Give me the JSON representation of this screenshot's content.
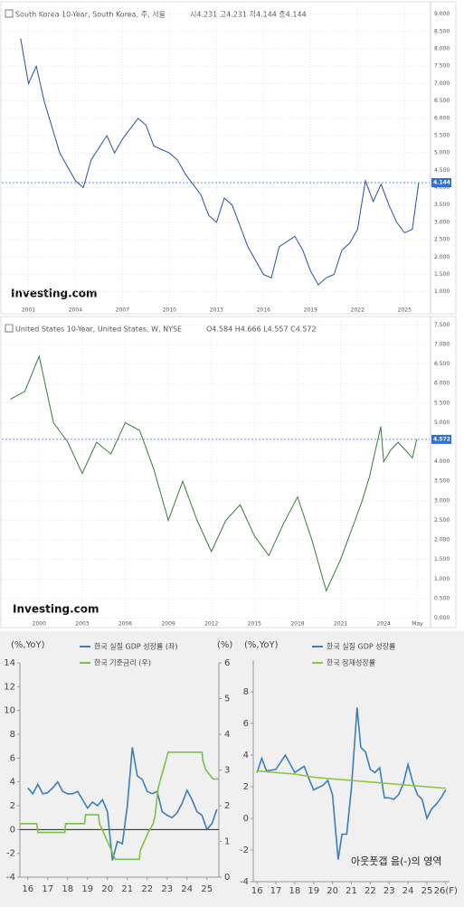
{
  "chart_data": [
    {
      "type": "line",
      "title": "South Korea 10-Year, South Korea, 주, 서울",
      "subtitle": "시4.231 고4.231 저4.144 종4.144",
      "source": "Investing.com",
      "xlim": [
        1999.3,
        2026.6
      ],
      "xticks": [
        2001,
        2004,
        2007,
        2010,
        2013,
        2016,
        2019,
        2022,
        2025
      ],
      "ylim": [
        0.6,
        9.2
      ],
      "yticks": [
        {
          "value": 1,
          "label": "1.000"
        },
        {
          "value": 1.5,
          "label": "1.500"
        },
        {
          "value": 2,
          "label": "2.000"
        },
        {
          "value": 2.5,
          "label": "2.500"
        },
        {
          "value": 3,
          "label": "3.000"
        },
        {
          "value": 3.5,
          "label": "3.500"
        },
        {
          "value": 4,
          "label": "4.000"
        },
        {
          "value": 4.5,
          "label": "4.500"
        },
        {
          "value": 5,
          "label": "5.000"
        },
        {
          "value": 5.5,
          "label": "5.500"
        },
        {
          "value": 6,
          "label": "6.000"
        },
        {
          "value": 6.5,
          "label": "6.500"
        },
        {
          "value": 7,
          "label": "7.000"
        },
        {
          "value": 7.5,
          "label": "7.500"
        },
        {
          "value": 8,
          "label": "8.000"
        },
        {
          "value": 8.5,
          "label": "8.500"
        },
        {
          "value": 9,
          "label": "9.000"
        }
      ],
      "grid": true,
      "last_value": 4.144,
      "last_color": "#2f6fd6",
      "series": [
        {
          "name": "South Korea 10-Year",
          "color": "#2c4f9e",
          "x": [
            2000.5,
            2001,
            2001.5,
            2002,
            2003,
            2004,
            2004.5,
            2005,
            2006,
            2006.5,
            2007,
            2008,
            2008.5,
            2009,
            2010,
            2010.5,
            2011,
            2012,
            2012.5,
            2013,
            2013.5,
            2014,
            2015,
            2016,
            2016.5,
            2017,
            2018,
            2018.5,
            2019,
            2019.5,
            2020,
            2020.5,
            2021,
            2021.5,
            2022,
            2022.5,
            2023,
            2023.5,
            2024,
            2024.5,
            2025,
            2025.5,
            2025.9
          ],
          "values": [
            8.3,
            7.0,
            7.5,
            6.5,
            5.0,
            4.2,
            4.0,
            4.8,
            5.5,
            5.0,
            5.4,
            6.0,
            5.8,
            5.2,
            5.0,
            4.8,
            4.4,
            3.8,
            3.2,
            3.0,
            3.7,
            3.5,
            2.3,
            1.5,
            1.4,
            2.3,
            2.6,
            2.2,
            1.6,
            1.2,
            1.4,
            1.5,
            2.2,
            2.4,
            2.8,
            4.2,
            3.6,
            4.1,
            3.5,
            3.0,
            2.7,
            2.8,
            4.144
          ]
        }
      ]
    },
    {
      "type": "line",
      "title": "United States 10-Year, United States, W, NYSE",
      "subtitle": "O4.584 H4.666 L4.557 C4.572",
      "source": "Investing.com",
      "xlim": [
        1997.4,
        2027.2
      ],
      "xticks": [
        2000,
        2003,
        2006,
        2009,
        2012,
        2015,
        2018,
        2021,
        2024,
        {
          "value": 2026.35,
          "label": "May"
        }
      ],
      "ylim": [
        -0.15,
        7.6
      ],
      "yticks": [
        {
          "value": 0,
          "label": "0.000"
        },
        {
          "value": 0.5,
          "label": "0.500"
        },
        {
          "value": 1,
          "label": "1.000"
        },
        {
          "value": 1.5,
          "label": "1.500"
        },
        {
          "value": 2,
          "label": "2.000"
        },
        {
          "value": 2.5,
          "label": "2.500"
        },
        {
          "value": 3,
          "label": "3.000"
        },
        {
          "value": 3.5,
          "label": "3.500"
        },
        {
          "value": 4,
          "label": "4.000"
        },
        {
          "value": 4.5,
          "label": "4.500"
        },
        {
          "value": 5,
          "label": "5.000"
        },
        {
          "value": 5.5,
          "label": "5.500"
        },
        {
          "value": 6,
          "label": "6.000"
        },
        {
          "value": 6.5,
          "label": "6.500"
        },
        {
          "value": 7,
          "label": "7.000"
        },
        {
          "value": 7.5,
          "label": "7.500"
        }
      ],
      "grid": true,
      "last_value": 4.572,
      "last_color": "#2f6fd6",
      "series": [
        {
          "name": "United States 10-Year",
          "color": "#3d7a3d",
          "x": [
            1998,
            1999,
            2000,
            2001,
            2002,
            2003,
            2004,
            2005,
            2006,
            2007,
            2008,
            2009,
            2010,
            2011,
            2012,
            2013,
            2014,
            2015,
            2016,
            2017,
            2018,
            2019,
            2020,
            2021,
            2022,
            2022.5,
            2023,
            2023.8,
            2024,
            2024.5,
            2025,
            2025.5,
            2026,
            2026.3
          ],
          "values": [
            5.6,
            5.8,
            6.7,
            5.0,
            4.5,
            3.7,
            4.5,
            4.2,
            5.0,
            4.8,
            3.8,
            2.5,
            3.5,
            2.5,
            1.7,
            2.5,
            2.9,
            2.1,
            1.6,
            2.4,
            3.1,
            2.0,
            0.7,
            1.5,
            2.5,
            3.0,
            3.6,
            4.9,
            4.0,
            4.3,
            4.5,
            4.3,
            4.1,
            4.572
          ]
        }
      ]
    },
    {
      "type": "line",
      "y_label": "(%,YoY)",
      "y2_label": "(%)",
      "xlim": [
        15.6,
        25.6
      ],
      "xticks": [
        16,
        17,
        18,
        19,
        20,
        21,
        22,
        23,
        24,
        25
      ],
      "ylim": [
        -4,
        14
      ],
      "yticks": [
        -4,
        -2,
        0,
        2,
        4,
        6,
        8,
        10,
        12,
        14
      ],
      "y2lim": [
        0,
        6
      ],
      "y2ticks": [
        0,
        1,
        2,
        3,
        4,
        5,
        6
      ],
      "grid": false,
      "series": [
        {
          "name": "한국 실질 GDP 성장률 (좌)",
          "color": "#3a7fb8",
          "x": [
            16,
            16.25,
            16.5,
            16.75,
            17,
            17.25,
            17.5,
            17.75,
            18,
            18.25,
            18.5,
            18.75,
            19,
            19.25,
            19.5,
            19.75,
            20,
            20.25,
            20.5,
            20.75,
            21,
            21.25,
            21.5,
            21.75,
            22,
            22.25,
            22.5,
            22.75,
            23,
            23.25,
            23.5,
            23.75,
            24,
            24.25,
            24.5,
            24.75,
            25,
            25.25,
            25.5
          ],
          "values": [
            3.5,
            3.0,
            3.8,
            3.0,
            3.1,
            3.5,
            4.0,
            3.2,
            3.0,
            3.0,
            3.2,
            2.5,
            1.8,
            2.3,
            2.0,
            2.5,
            1.5,
            -2.6,
            -1.0,
            -1.2,
            2.0,
            6.9,
            4.5,
            4.2,
            3.2,
            3.0,
            3.2,
            1.5,
            1.2,
            1.0,
            1.4,
            2.2,
            3.3,
            2.5,
            1.5,
            1.2,
            0.0,
            0.5,
            1.7
          ]
        },
        {
          "name": "한국 기준금리 (우)",
          "color": "#7cc04a",
          "axis": "y2",
          "x": [
            15.6,
            16.45,
            16.5,
            17.85,
            17.9,
            18.85,
            18.9,
            19.55,
            19.6,
            19.8,
            20.2,
            20.4,
            21.6,
            21.65,
            21.85,
            22.05,
            22.3,
            22.4,
            22.5,
            22.55,
            22.8,
            23.05,
            24.75,
            24.8,
            24.95,
            25.3,
            25.6
          ],
          "values": [
            1.5,
            1.5,
            1.25,
            1.25,
            1.5,
            1.5,
            1.75,
            1.75,
            1.5,
            1.25,
            0.75,
            0.5,
            0.5,
            0.75,
            1.0,
            1.25,
            1.5,
            1.75,
            2.25,
            2.5,
            3.0,
            3.5,
            3.5,
            3.25,
            3.0,
            2.75,
            2.75
          ]
        }
      ]
    },
    {
      "type": "line",
      "y_label": "(%,YoY)",
      "annotation": "아웃풋갭 음(-)의 영역",
      "xlim": [
        15.8,
        26.2
      ],
      "xticks": [
        16,
        17,
        18,
        19,
        20,
        21,
        22,
        23,
        24,
        25,
        {
          "value": 26,
          "label": "26(F)"
        }
      ],
      "ylim": [
        -4,
        10
      ],
      "yticks": [
        -4,
        -2,
        0,
        2,
        4,
        6,
        8
      ],
      "grid": false,
      "series": [
        {
          "name": "한국 실질 GDP 성장률",
          "color": "#3a7fb8",
          "x": [
            16,
            16.25,
            16.5,
            17,
            17.5,
            18,
            18.5,
            18.75,
            19,
            19.5,
            19.75,
            20,
            20.3,
            20.5,
            20.75,
            21,
            21.3,
            21.5,
            21.75,
            22,
            22.25,
            22.5,
            22.75,
            23,
            23.25,
            23.5,
            23.75,
            24,
            24.25,
            24.5,
            24.75,
            25,
            25.25,
            25.5,
            25.75,
            26
          ],
          "values": [
            2.9,
            3.8,
            3.0,
            3.1,
            4.0,
            2.9,
            3.3,
            2.5,
            1.8,
            2.1,
            2.4,
            1.5,
            -2.6,
            -1.0,
            -1.0,
            1.9,
            7.0,
            4.5,
            4.2,
            3.1,
            2.9,
            3.2,
            1.3,
            1.3,
            1.2,
            1.5,
            2.2,
            3.4,
            2.3,
            1.5,
            1.2,
            0.0,
            0.6,
            0.9,
            1.3,
            1.8
          ]
        },
        {
          "name": "한국 잠재성장률",
          "color": "#8dc63f",
          "x": [
            16,
            17,
            18,
            19,
            20,
            21,
            22,
            23,
            24,
            25,
            26
          ],
          "values": [
            3.0,
            2.9,
            2.8,
            2.6,
            2.5,
            2.4,
            2.3,
            2.2,
            2.1,
            2.0,
            1.9
          ]
        }
      ]
    }
  ]
}
